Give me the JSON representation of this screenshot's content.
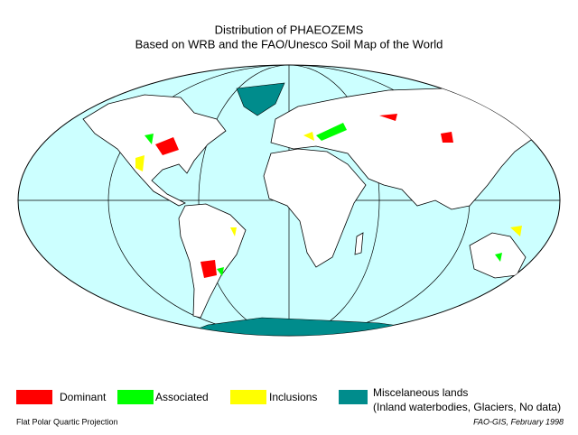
{
  "header": {
    "title": "Distribution of PHAEOZEMS",
    "subtitle": "Based on WRB and the FAO/Unesco Soil Map of the World"
  },
  "legend": [
    {
      "label": "Dominant",
      "color": "#ff0000"
    },
    {
      "label": "Associated",
      "color": "#00ff00"
    },
    {
      "label": "Inclusions",
      "color": "#ffff00"
    },
    {
      "label": "Miscelaneous lands",
      "note": "(Inland waterbodies, Glaciers, No data)",
      "color": "#008c8c"
    }
  ],
  "footer": {
    "projection": "Flat Polar Quartic Projection",
    "credit": "FAO-GIS, February 1998"
  }
}
